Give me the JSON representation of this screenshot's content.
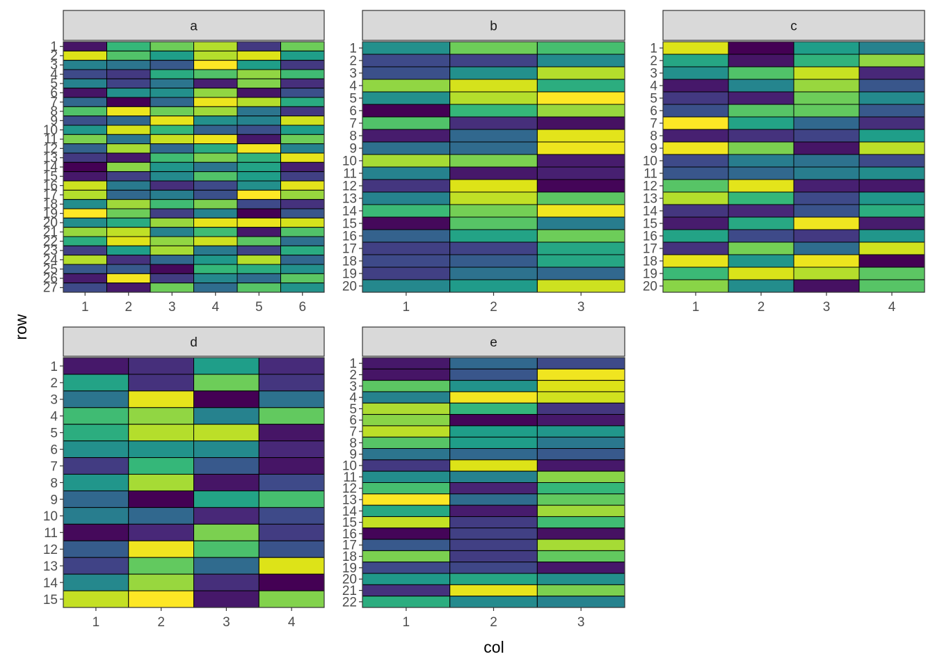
{
  "chart_data": {
    "type": "heatmap",
    "title": "",
    "xlabel": "col",
    "ylabel": "row",
    "colormap": "viridis",
    "value_range": [
      0,
      1
    ],
    "legend": "none",
    "grid": false,
    "facets": [
      {
        "label": "a",
        "x_ticks": [
          "1",
          "2",
          "3",
          "4",
          "5",
          "6"
        ],
        "y_ticks": [
          "1",
          "2",
          "3",
          "4",
          "5",
          "6",
          "7",
          "8",
          "9",
          "10",
          "11",
          "12",
          "13",
          "14",
          "15",
          "16",
          "17",
          "18",
          "19",
          "20",
          "21",
          "22",
          "23",
          "24",
          "25",
          "26",
          "27"
        ],
        "values": [
          [
            0.05,
            0.6,
            0.7,
            0.8,
            0.15,
            0.7
          ],
          [
            0.9,
            0.65,
            0.5,
            0.8,
            0.9,
            0.5
          ],
          [
            0.4,
            0.35,
            0.25,
            1.0,
            0.5,
            0.15
          ],
          [
            0.2,
            0.15,
            0.55,
            0.65,
            0.75,
            0.62
          ],
          [
            0.4,
            0.18,
            0.35,
            0.08,
            0.73,
            0.12
          ],
          [
            0.05,
            0.45,
            0.45,
            0.75,
            0.05,
            0.22
          ],
          [
            0.3,
            0.0,
            0.3,
            0.95,
            0.8,
            0.55
          ],
          [
            0.65,
            0.95,
            0.7,
            0.77,
            0.35,
            0.15
          ],
          [
            0.22,
            0.3,
            0.93,
            0.45,
            0.4,
            0.87
          ],
          [
            0.47,
            0.88,
            0.6,
            0.28,
            0.22,
            0.5
          ],
          [
            0.72,
            0.35,
            0.85,
            0.95,
            0.06,
            0.7
          ],
          [
            0.28,
            0.78,
            0.3,
            0.55,
            0.97,
            0.4
          ],
          [
            0.15,
            0.06,
            0.62,
            0.72,
            0.58,
            0.93
          ],
          [
            0.0,
            0.74,
            0.47,
            0.35,
            0.52,
            0.08
          ],
          [
            0.06,
            0.17,
            0.43,
            0.65,
            0.5,
            0.17
          ],
          [
            0.86,
            0.37,
            0.12,
            0.2,
            0.45,
            0.92
          ],
          [
            0.8,
            0.3,
            0.38,
            0.22,
            1.0,
            0.76
          ],
          [
            0.44,
            0.77,
            0.62,
            0.72,
            0.2,
            0.13
          ],
          [
            1.0,
            0.7,
            0.17,
            0.4,
            0.0,
            0.24
          ],
          [
            0.44,
            0.55,
            0.76,
            0.93,
            0.94,
            0.88
          ],
          [
            0.76,
            0.83,
            0.4,
            0.62,
            0.06,
            0.65
          ],
          [
            0.56,
            0.91,
            0.75,
            0.86,
            0.67,
            0.33
          ],
          [
            0.17,
            0.5,
            0.78,
            0.37,
            0.18,
            0.55
          ],
          [
            0.8,
            0.13,
            0.3,
            0.48,
            0.8,
            0.3
          ],
          [
            0.25,
            0.25,
            0.02,
            0.6,
            0.56,
            0.45
          ],
          [
            0.07,
            0.97,
            0.16,
            0.42,
            0.32,
            0.67
          ],
          [
            0.2,
            0.06,
            0.7,
            0.32,
            0.66,
            0.46
          ]
        ]
      },
      {
        "label": "b",
        "x_ticks": [
          "1",
          "2",
          "3"
        ],
        "y_ticks": [
          "1",
          "2",
          "3",
          "4",
          "5",
          "6",
          "7",
          "8",
          "9",
          "10",
          "11",
          "12",
          "13",
          "14",
          "15",
          "16",
          "17",
          "18",
          "19",
          "20"
        ],
        "values": [
          [
            0.45,
            0.7,
            0.63
          ],
          [
            0.2,
            0.18,
            0.43
          ],
          [
            0.22,
            0.45,
            0.8
          ],
          [
            0.75,
            0.88,
            0.56
          ],
          [
            0.45,
            0.8,
            1.0
          ],
          [
            0.0,
            0.6,
            0.76
          ],
          [
            0.65,
            0.12,
            0.04
          ],
          [
            0.07,
            0.3,
            0.92
          ],
          [
            0.33,
            0.31,
            0.95
          ],
          [
            0.78,
            0.72,
            0.07
          ],
          [
            0.4,
            0.06,
            0.08
          ],
          [
            0.14,
            0.9,
            0.01
          ],
          [
            0.4,
            0.83,
            0.67
          ],
          [
            0.61,
            0.71,
            0.96
          ],
          [
            0.02,
            0.66,
            0.38
          ],
          [
            0.28,
            0.52,
            0.7
          ],
          [
            0.17,
            0.18,
            0.53
          ],
          [
            0.2,
            0.26,
            0.53
          ],
          [
            0.17,
            0.34,
            0.3
          ],
          [
            0.42,
            0.49,
            0.86
          ]
        ]
      },
      {
        "label": "c",
        "x_ticks": [
          "1",
          "2",
          "3",
          "4"
        ],
        "y_ticks": [
          "1",
          "2",
          "3",
          "4",
          "5",
          "6",
          "7",
          "8",
          "9",
          "10",
          "11",
          "12",
          "13",
          "14",
          "15",
          "16",
          "17",
          "18",
          "19",
          "20"
        ],
        "values": [
          [
            0.9,
            0.0,
            0.5,
            0.4
          ],
          [
            0.53,
            0.05,
            0.58,
            0.75
          ],
          [
            0.45,
            0.65,
            0.85,
            0.1
          ],
          [
            0.06,
            0.41,
            0.76,
            0.24
          ],
          [
            0.15,
            0.08,
            0.7,
            0.43
          ],
          [
            0.22,
            0.66,
            0.68,
            0.25
          ],
          [
            1.0,
            0.52,
            0.3,
            0.12
          ],
          [
            0.08,
            0.13,
            0.18,
            0.5
          ],
          [
            0.96,
            0.72,
            0.05,
            0.82
          ],
          [
            0.2,
            0.38,
            0.34,
            0.2
          ],
          [
            0.24,
            0.3,
            0.38,
            0.44
          ],
          [
            0.66,
            0.92,
            0.08,
            0.06
          ],
          [
            0.8,
            0.6,
            0.2,
            0.47
          ],
          [
            0.14,
            0.1,
            0.23,
            0.56
          ],
          [
            0.07,
            0.54,
            0.96,
            0.07
          ],
          [
            0.52,
            0.2,
            0.15,
            0.47
          ],
          [
            0.13,
            0.71,
            0.32,
            0.87
          ],
          [
            0.93,
            0.47,
            0.95,
            0.0
          ],
          [
            0.61,
            0.89,
            0.8,
            0.67
          ],
          [
            0.74,
            0.44,
            0.04,
            0.66
          ]
        ]
      },
      {
        "label": "d",
        "x_ticks": [
          "1",
          "2",
          "3",
          "4"
        ],
        "y_ticks": [
          "1",
          "2",
          "3",
          "4",
          "5",
          "6",
          "7",
          "8",
          "9",
          "10",
          "11",
          "12",
          "13",
          "14",
          "15"
        ],
        "values": [
          [
            0.06,
            0.12,
            0.5,
            0.11
          ],
          [
            0.52,
            0.13,
            0.7,
            0.14
          ],
          [
            0.35,
            0.93,
            0.0,
            0.34
          ],
          [
            0.62,
            0.75,
            0.4,
            0.68
          ],
          [
            0.56,
            0.8,
            0.82,
            0.05
          ],
          [
            0.45,
            0.46,
            0.43,
            0.1
          ],
          [
            0.16,
            0.6,
            0.25,
            0.05
          ],
          [
            0.47,
            0.78,
            0.05,
            0.2
          ],
          [
            0.3,
            0.0,
            0.52,
            0.63
          ],
          [
            0.38,
            0.3,
            0.1,
            0.2
          ],
          [
            0.02,
            0.1,
            0.72,
            0.16
          ],
          [
            0.26,
            0.96,
            0.64,
            0.23
          ],
          [
            0.18,
            0.68,
            0.31,
            0.9
          ],
          [
            0.42,
            0.76,
            0.12,
            0.0
          ],
          [
            0.84,
            1.0,
            0.06,
            0.73
          ]
        ]
      },
      {
        "label": "e",
        "x_ticks": [
          "1",
          "2",
          "3"
        ],
        "y_ticks": [
          "1",
          "2",
          "3",
          "4",
          "5",
          "6",
          "7",
          "8",
          "9",
          "10",
          "11",
          "12",
          "13",
          "14",
          "15",
          "16",
          "17",
          "18",
          "19",
          "20",
          "21",
          "22"
        ],
        "values": [
          [
            0.06,
            0.3,
            0.2
          ],
          [
            0.05,
            0.24,
            0.96
          ],
          [
            0.67,
            0.46,
            0.9
          ],
          [
            0.4,
            0.97,
            0.87
          ],
          [
            0.79,
            0.59,
            0.14
          ],
          [
            0.74,
            0.01,
            0.06
          ],
          [
            0.82,
            0.5,
            0.47
          ],
          [
            0.66,
            0.5,
            0.36
          ],
          [
            0.35,
            0.3,
            0.25
          ],
          [
            0.15,
            0.9,
            0.06
          ],
          [
            0.44,
            0.4,
            0.74
          ],
          [
            0.63,
            0.09,
            0.6
          ],
          [
            1.0,
            0.32,
            0.68
          ],
          [
            0.54,
            0.07,
            0.77
          ],
          [
            0.84,
            0.16,
            0.62
          ],
          [
            0.01,
            0.17,
            0.04
          ],
          [
            0.25,
            0.17,
            0.78
          ],
          [
            0.72,
            0.16,
            0.68
          ],
          [
            0.2,
            0.19,
            0.06
          ],
          [
            0.48,
            0.53,
            0.45
          ],
          [
            0.13,
            0.93,
            0.72
          ],
          [
            0.56,
            0.43,
            0.4
          ]
        ]
      }
    ]
  }
}
